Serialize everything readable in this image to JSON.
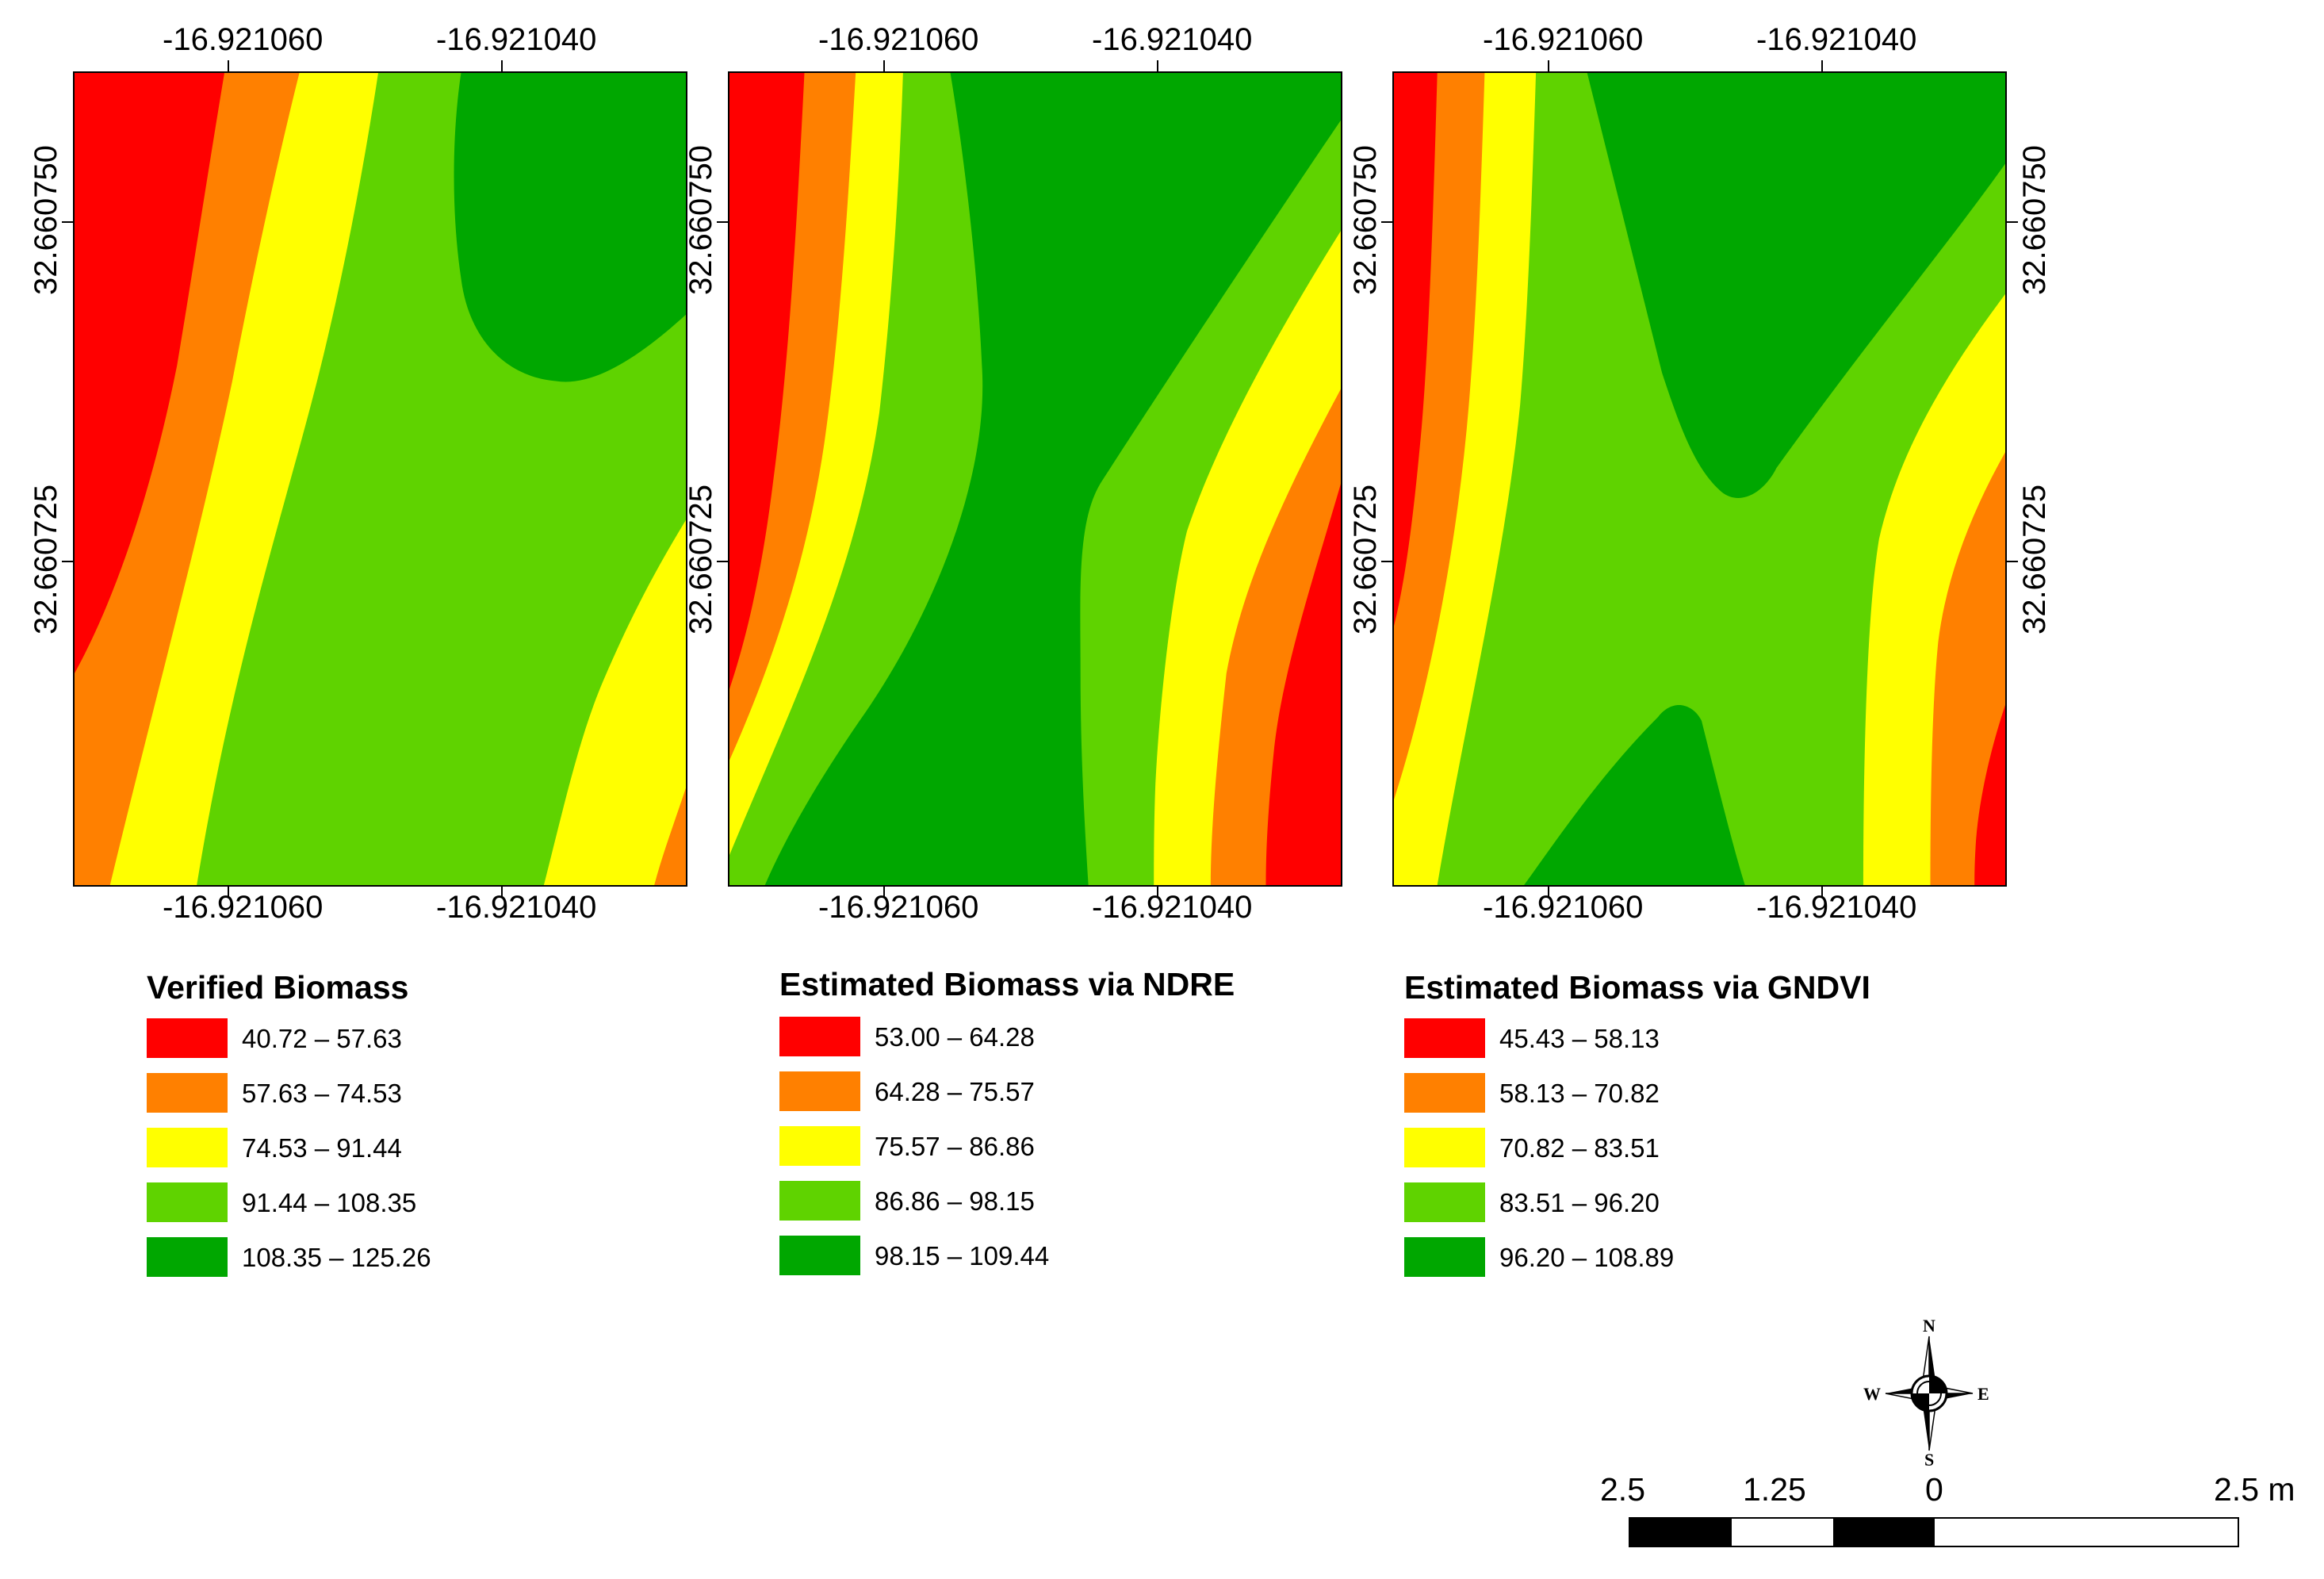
{
  "colors": {
    "class1": "#ff0000",
    "class2": "#ff8000",
    "class3": "#ffff00",
    "class4": "#5fd300",
    "class5": "#00a700"
  },
  "maps": [
    {
      "id": "verified",
      "x_ticks": [
        "-16.921060",
        "-16.921040"
      ],
      "y_ticks": [
        "32.660750",
        "32.660725"
      ],
      "legend": {
        "title": "Verified Biomass",
        "classes": [
          "40.72 – 57.63",
          "57.63 – 74.53",
          "74.53 – 91.44",
          "91.44 – 108.35",
          "108.35 – 125.26"
        ]
      }
    },
    {
      "id": "ndre",
      "x_ticks": [
        "-16.921060",
        "-16.921040"
      ],
      "y_ticks": [
        "32.660750",
        "32.660725"
      ],
      "legend": {
        "title": "Estimated Biomass via NDRE",
        "classes": [
          "53.00 – 64.28",
          "64.28 – 75.57",
          "75.57 – 86.86",
          "86.86 – 98.15",
          "98.15 – 109.44"
        ]
      }
    },
    {
      "id": "gndvi",
      "x_ticks": [
        "-16.921060",
        "-16.921040"
      ],
      "y_ticks": [
        "32.660750",
        "32.660725"
      ],
      "legend": {
        "title": "Estimated Biomass via GNDVI",
        "classes": [
          "45.43 – 58.13",
          "58.13 – 70.82",
          "70.82 – 83.51",
          "83.51 – 96.20",
          "96.20 – 108.89"
        ]
      }
    }
  ],
  "compass": {
    "n": "N",
    "s": "S",
    "e": "E",
    "w": "W"
  },
  "scale_bar": {
    "labels": [
      "2.5",
      "1.25",
      "0",
      "2.5 m"
    ]
  }
}
